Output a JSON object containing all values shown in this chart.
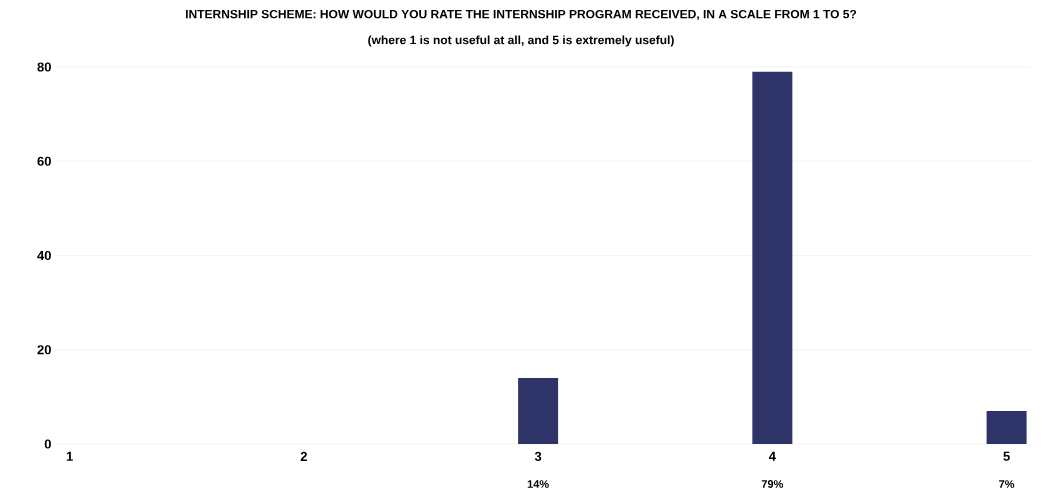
{
  "chart_data": {
    "type": "bar",
    "title": "INTERNSHIP SCHEME: HOW WOULD YOU RATE THE INTERNSHIP PROGRAM RECEIVED, IN A SCALE FROM 1 TO 5?",
    "subtitle": "(where 1 is not useful at all, and 5 is extremely useful)",
    "categories": [
      "1",
      "2",
      "3",
      "4",
      "5"
    ],
    "values": [
      0,
      0,
      14,
      79,
      7
    ],
    "value_labels": [
      null,
      null,
      "14%",
      "79%",
      "7%"
    ],
    "color": "#2e3468",
    "ylim": [
      0,
      80
    ],
    "yticks": [
      0,
      20,
      40,
      60,
      80
    ],
    "grid": "y"
  }
}
